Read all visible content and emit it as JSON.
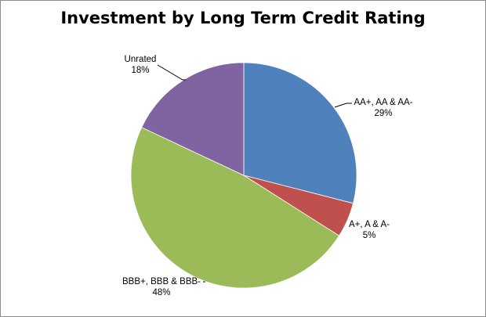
{
  "chart_data": {
    "type": "pie",
    "title": "Investment by Long Term Credit Rating",
    "slices": [
      {
        "label": "AA+, AA & AA-",
        "value": 29,
        "value_label": "29%",
        "color": "#4f81bd"
      },
      {
        "label": "A+, A & A-",
        "value": 5,
        "value_label": "5%",
        "color": "#c0504d"
      },
      {
        "label": "BBB+, BBB & BBB-",
        "value": 48,
        "value_label": "48%",
        "color": "#9bbb59"
      },
      {
        "label": "Unrated",
        "value": 18,
        "value_label": "18%",
        "color": "#8064a2"
      }
    ],
    "start": "12 o'clock",
    "direction": "clockwise",
    "legend": "none",
    "data_labels": "outside with leader lines"
  }
}
